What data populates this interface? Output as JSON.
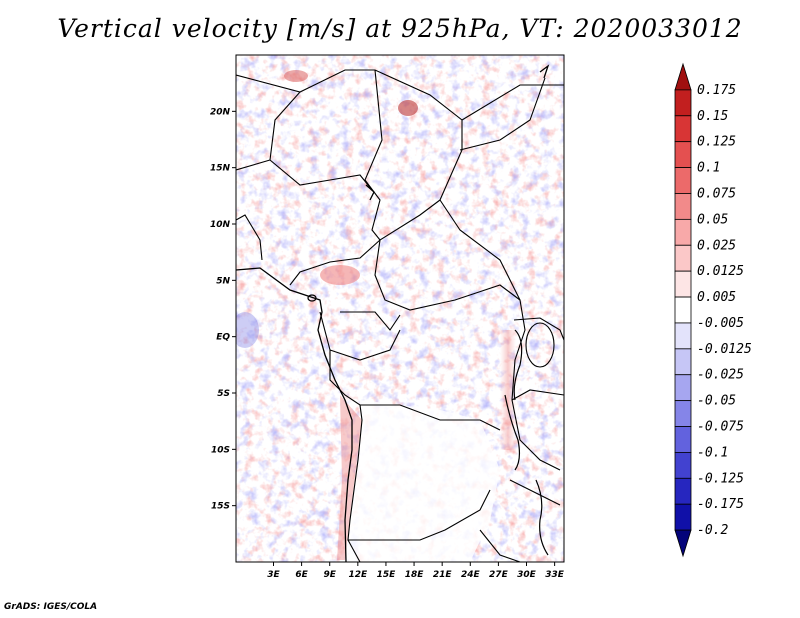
{
  "title": "Vertical velocity [m/s] at 925hPa, VT: 2020033012",
  "footer": "GrADS: IGES/COLA",
  "map": {
    "region": "Central Africa",
    "lat_range": [
      -20,
      25
    ],
    "lon_range": [
      -1,
      34
    ],
    "lat_ticks": [
      {
        "value": 20,
        "label": "20N"
      },
      {
        "value": 15,
        "label": "15N"
      },
      {
        "value": 10,
        "label": "10N"
      },
      {
        "value": 5,
        "label": "5N"
      },
      {
        "value": 0,
        "label": "EQ"
      },
      {
        "value": -5,
        "label": "5S"
      },
      {
        "value": -10,
        "label": "10S"
      },
      {
        "value": -15,
        "label": "15S"
      }
    ],
    "lon_ticks": [
      {
        "value": 3,
        "label": "3E"
      },
      {
        "value": 6,
        "label": "6E"
      },
      {
        "value": 9,
        "label": "9E"
      },
      {
        "value": 12,
        "label": "12E"
      },
      {
        "value": 15,
        "label": "15E"
      },
      {
        "value": 18,
        "label": "18E"
      },
      {
        "value": 21,
        "label": "21E"
      },
      {
        "value": 24,
        "label": "24E"
      },
      {
        "value": 27,
        "label": "27E"
      },
      {
        "value": 30,
        "label": "30E"
      },
      {
        "value": 33,
        "label": "33E"
      }
    ]
  },
  "colorbar": {
    "labels": [
      "0.175",
      "0.15",
      "0.125",
      "0.1",
      "0.075",
      "0.05",
      "0.025",
      "0.0125",
      "0.005",
      "-0.005",
      "-0.0125",
      "-0.025",
      "-0.05",
      "-0.075",
      "-0.1",
      "-0.125",
      "-0.175",
      "-0.2"
    ],
    "colors": [
      "#a00f0f",
      "#c21f1f",
      "#d83535",
      "#e45050",
      "#ec6a6a",
      "#f28a8a",
      "#f8a9a9",
      "#fbc8c8",
      "#fde5e5",
      "#ffffff",
      "#e3e3fb",
      "#c6c6f6",
      "#a6a6f0",
      "#8585e8",
      "#6262de",
      "#4242d0",
      "#2626bf",
      "#1010a8",
      "#04047a"
    ]
  }
}
